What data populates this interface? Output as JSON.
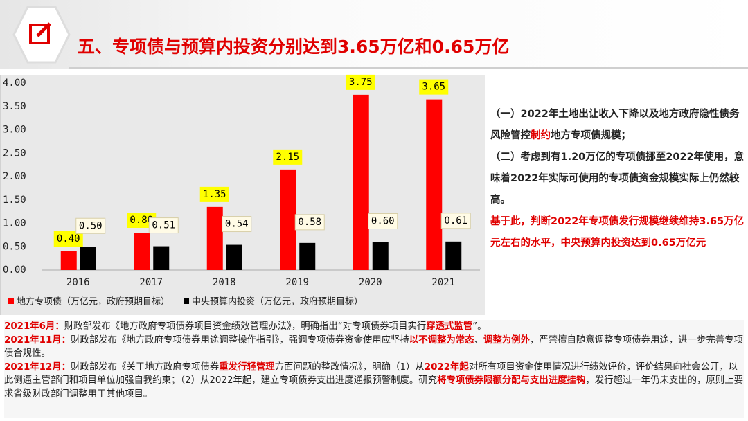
{
  "header": {
    "title": "五、专项债与预算内投资分别达到3.65万亿和0.65万亿"
  },
  "chart_data": {
    "type": "bar",
    "categories": [
      "2016",
      "2017",
      "2018",
      "2019",
      "2020",
      "2021"
    ],
    "series": [
      {
        "name": "地方专项债（万亿元，政府预期目标）",
        "color": "#ff0000",
        "values": [
          0.4,
          0.8,
          1.35,
          2.15,
          3.75,
          3.65
        ],
        "value_labels": [
          "0.40",
          "0.80",
          "1.35",
          "2.15",
          "3.75",
          "3.65"
        ]
      },
      {
        "name": "中央预算内投资（万亿元，政府预期目标）",
        "color": "#000000",
        "values": [
          0.5,
          0.51,
          0.54,
          0.58,
          0.6,
          0.61
        ],
        "value_labels": [
          "0.50",
          "0.51",
          "0.54",
          "0.58",
          "0.60",
          "0.61"
        ]
      }
    ],
    "ylim": [
      0,
      4
    ],
    "yticks": [
      {
        "value": 0,
        "label": "0.00"
      },
      {
        "value": 0.5,
        "label": "0.50"
      },
      {
        "value": 1,
        "label": "1.00"
      },
      {
        "value": 1.5,
        "label": "1.50"
      },
      {
        "value": 2,
        "label": "2.00"
      },
      {
        "value": 2.5,
        "label": "2.50"
      },
      {
        "value": 3,
        "label": "3.00"
      },
      {
        "value": 3.5,
        "label": "3.50"
      },
      {
        "value": 4,
        "label": "4.00"
      }
    ],
    "grid": false,
    "legend": "bottom"
  },
  "side_text": {
    "paragraphs": [
      [
        {
          "text": "（一）2022年土地出让收入下降以及地方政府隐性债务风险管控",
          "color": "#222222",
          "bold": true
        },
        {
          "text": "制约",
          "color": "#e00000",
          "bold": true
        },
        {
          "text": "地方专项债规模；",
          "color": "#222222",
          "bold": true
        }
      ],
      [
        {
          "text": "（二）考虑到有1.20万亿的专项债挪至2022年使用，意味着2022年实际可使用的专项债资金规模实际上仍然较高。",
          "color": "#222222",
          "bold": true
        }
      ],
      [
        {
          "text": "基于此，判断2022年专项债发行规模继续维持3.65万亿元左右的水平，中央预算内投资达到0.65万亿元",
          "color": "#e00000",
          "bold": true
        }
      ]
    ]
  },
  "bottom_text": {
    "paragraphs": [
      [
        {
          "text": "2021年6月：",
          "color": "#e00000",
          "bold": true
        },
        {
          "text": "财政部发布《地方政府专项债券项目资金绩效管理办法》，明确指出“对专项债券项目实行",
          "color": "#222222",
          "bold": false
        },
        {
          "text": "穿透式监管",
          "color": "#e00000",
          "bold": true
        },
        {
          "text": "”。",
          "color": "#222222",
          "bold": false
        }
      ],
      [
        {
          "text": "2021年11月：",
          "color": "#e00000",
          "bold": true
        },
        {
          "text": "财政部发布《地方政府专项债券用途调整操作指引》，强调专项债券资金使用应坚持",
          "color": "#222222",
          "bold": false
        },
        {
          "text": "以不调整为常态",
          "color": "#e00000",
          "bold": true
        },
        {
          "text": "、",
          "color": "#222222",
          "bold": false
        },
        {
          "text": "调整为例外",
          "color": "#e00000",
          "bold": true
        },
        {
          "text": "，严禁擅自随意调整专项债券用途，进一步完善专项债合规性。",
          "color": "#222222",
          "bold": false
        }
      ],
      [
        {
          "text": "2021年12月：",
          "color": "#e00000",
          "bold": true
        },
        {
          "text": "财政部发布《关于地方政府专项债券",
          "color": "#222222",
          "bold": false
        },
        {
          "text": "重发行轻管理",
          "color": "#e00000",
          "bold": true
        },
        {
          "text": "方面问题的整改情况》，明确（1）从",
          "color": "#222222",
          "bold": false
        },
        {
          "text": "2022年起",
          "color": "#e00000",
          "bold": true
        },
        {
          "text": "对所有项目资金使用情况进行绩效评价，评价结果向社会公开，以此倒逼主管部门和项目单位加强自我约束；（2）从2022年起，建立专项债券支出进度通报预警制度。研究",
          "color": "#222222",
          "bold": false
        },
        {
          "text": "将专项债券限额分配与支出进度挂钩",
          "color": "#e00000",
          "bold": true
        },
        {
          "text": "，发行超过一年仍未支出的，原则上要求省级财政部门调整用于其他项目。",
          "color": "#222222",
          "bold": false
        }
      ]
    ]
  }
}
